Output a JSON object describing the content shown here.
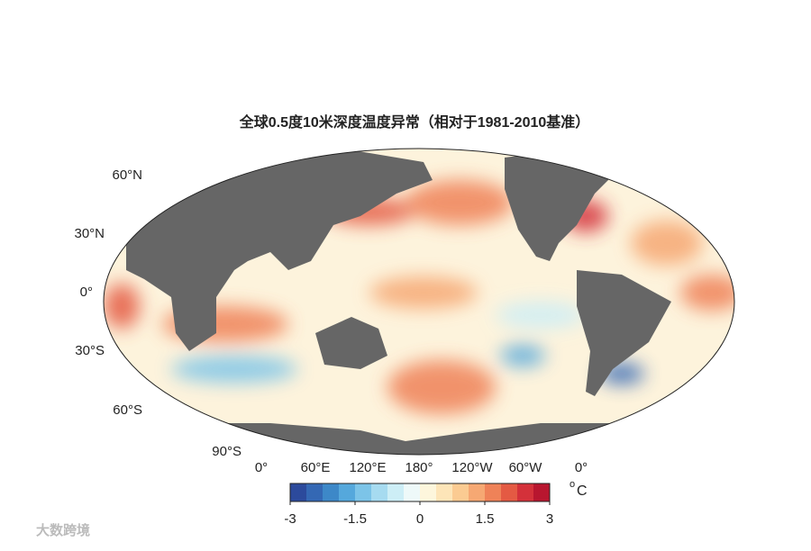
{
  "title": "全球0.5度10米深度温度异常（相对于1981-2010基准）",
  "lat_labels": [
    "60°N",
    "30°N",
    "0°",
    "30°S",
    "60°S",
    "90°S"
  ],
  "lon_labels": [
    "0°",
    "60°E",
    "120°E",
    "180°",
    "120°W",
    "60°W",
    "0°"
  ],
  "colorbar": {
    "lim": [
      -3,
      3
    ],
    "ticks": [
      -3,
      -1.5,
      0,
      1.5,
      3
    ],
    "unit_sup": "o",
    "unit": "C",
    "colors": [
      "#2c4a9c",
      "#3468b4",
      "#3d88c8",
      "#55a8dc",
      "#7cc4e8",
      "#a6dbf0",
      "#cdeef6",
      "#eef9f9",
      "#fdf6dc",
      "#fde5b8",
      "#fbcb92",
      "#f6a873",
      "#ef8258",
      "#e45a43",
      "#d4313a",
      "#b8162f"
    ]
  },
  "watermark": "大数跨境"
}
